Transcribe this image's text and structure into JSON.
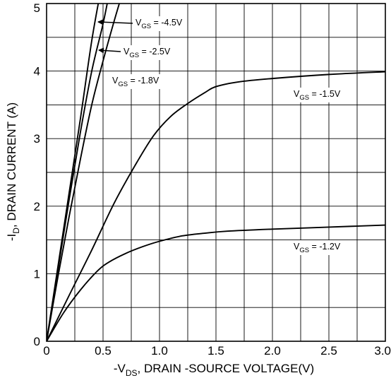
{
  "chart_data": {
    "type": "line",
    "title": "",
    "xlabel": "-VDS, DRAIN -SOURCE VOLTAGE(V)",
    "ylabel": "-ID, DRAIN CURRENT (A)",
    "xlabel_parts": {
      "pre": "-V",
      "sub": "DS",
      "post": ", DRAIN -SOURCE VOLTAGE(V)"
    },
    "ylabel_parts": {
      "pre": "-I",
      "sub": "D",
      "post": ", DRAIN CURRENT (A)"
    },
    "xlim": [
      0,
      3.0
    ],
    "ylim": [
      0,
      5
    ],
    "grid": true,
    "x_ticks": [
      0,
      0.5,
      1.0,
      1.5,
      2.0,
      2.5,
      3.0
    ],
    "x_tick_labels": [
      "0",
      "0.5",
      "1.0",
      "1.5",
      "2.0",
      "2.5",
      "3.0"
    ],
    "y_ticks": [
      0,
      1,
      2,
      3,
      4,
      5
    ],
    "y_tick_labels": [
      "0",
      "1",
      "2",
      "3",
      "4",
      "5"
    ],
    "series": [
      {
        "name": "VGS = -4.5V",
        "label_parts": {
          "pre": "V",
          "sub": "GS",
          "post": " = -4.5V"
        },
        "points": [
          [
            0,
            0
          ],
          [
            0.1,
            1.1
          ],
          [
            0.2,
            2.2
          ],
          [
            0.3,
            3.3
          ],
          [
            0.4,
            4.45
          ],
          [
            0.48,
            5.2
          ]
        ]
      },
      {
        "name": "VGS = -2.5V",
        "label_parts": {
          "pre": "V",
          "sub": "GS",
          "post": " = -2.5V"
        },
        "points": [
          [
            0,
            0
          ],
          [
            0.1,
            1.05
          ],
          [
            0.2,
            2.1
          ],
          [
            0.3,
            3.1
          ],
          [
            0.4,
            4.0
          ],
          [
            0.5,
            4.7
          ],
          [
            0.56,
            5.2
          ]
        ]
      },
      {
        "name": "VGS = -1.8V",
        "label_parts": {
          "pre": "V",
          "sub": "GS",
          "post": " = -1.8V"
        },
        "points": [
          [
            0,
            0
          ],
          [
            0.1,
            0.95
          ],
          [
            0.2,
            1.85
          ],
          [
            0.3,
            2.7
          ],
          [
            0.4,
            3.5
          ],
          [
            0.5,
            4.15
          ],
          [
            0.6,
            4.75
          ],
          [
            0.68,
            5.2
          ]
        ]
      },
      {
        "name": "VGS = -1.5V",
        "label_parts": {
          "pre": "V",
          "sub": "GS",
          "post": " = -1.5V"
        },
        "points": [
          [
            0,
            0
          ],
          [
            0.2,
            0.68
          ],
          [
            0.4,
            1.35
          ],
          [
            0.6,
            2.05
          ],
          [
            0.8,
            2.65
          ],
          [
            0.95,
            3.05
          ],
          [
            1.1,
            3.33
          ],
          [
            1.25,
            3.52
          ],
          [
            1.4,
            3.68
          ],
          [
            1.5,
            3.77
          ],
          [
            1.7,
            3.84
          ],
          [
            2.0,
            3.89
          ],
          [
            2.5,
            3.95
          ],
          [
            3.0,
            3.99
          ]
        ]
      },
      {
        "name": "VGS = -1.2V",
        "label_parts": {
          "pre": "V",
          "sub": "GS",
          "post": " = -1.2V"
        },
        "points": [
          [
            0,
            0
          ],
          [
            0.15,
            0.42
          ],
          [
            0.3,
            0.76
          ],
          [
            0.45,
            1.04
          ],
          [
            0.55,
            1.17
          ],
          [
            0.7,
            1.3
          ],
          [
            0.85,
            1.4
          ],
          [
            1.0,
            1.48
          ],
          [
            1.2,
            1.56
          ],
          [
            1.4,
            1.6
          ],
          [
            1.6,
            1.63
          ],
          [
            2.0,
            1.66
          ],
          [
            2.5,
            1.69
          ],
          [
            3.0,
            1.72
          ]
        ]
      }
    ]
  }
}
